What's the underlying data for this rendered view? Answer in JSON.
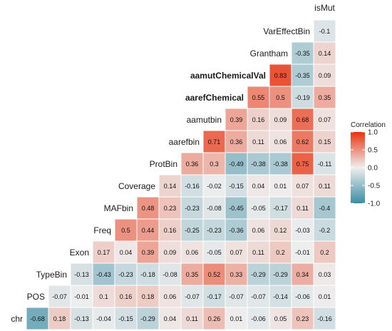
{
  "chart_data": {
    "type": "heatmap",
    "variables": [
      "chr",
      "POS",
      "TypeBin",
      "Exon",
      "Freq",
      "MAFbin",
      "Coverage",
      "ProtBin",
      "aarefbin",
      "aamutbin",
      "aarefChemical",
      "aamutChemicalVal",
      "Grantham",
      "VarEffectBin",
      "isMut"
    ],
    "row_labels": [
      "VarEffectBin",
      "Grantham",
      "aamutChemicalVal",
      "aarefChemical",
      "aamutbin",
      "aarefbin",
      "ProtBin",
      "Coverage",
      "MAFbin",
      "Freq",
      "Exon",
      "TypeBin",
      "POS",
      "chr"
    ],
    "column_labels": [
      "isMut"
    ],
    "rows": [
      [
        -0.1
      ],
      [
        -0.35,
        0.14
      ],
      [
        0.83,
        -0.35,
        0.09
      ],
      [
        0.55,
        0.5,
        -0.19,
        0.35
      ],
      [
        0.39,
        0.16,
        0.09,
        0.68,
        0.07
      ],
      [
        0.71,
        0.36,
        0.11,
        0.06,
        0.62,
        0.15
      ],
      [
        0.36,
        0.3,
        -0.49,
        -0.38,
        -0.38,
        0.75,
        -0.11
      ],
      [
        0.14,
        -0.16,
        -0.02,
        -0.15,
        0.04,
        0.01,
        0.07,
        0.11
      ],
      [
        0.48,
        0.23,
        -0.23,
        -0.08,
        -0.45,
        -0.05,
        -0.17,
        0.11,
        -0.4
      ],
      [
        0.5,
        0.44,
        0.16,
        -0.25,
        -0.23,
        -0.36,
        0.06,
        0.12,
        -0.03,
        -0.2
      ],
      [
        0.17,
        0.04,
        0.39,
        0.09,
        0.06,
        -0.05,
        0.07,
        0.11,
        0.2,
        -0.01,
        0.2
      ],
      [
        -0.13,
        -0.43,
        -0.23,
        -0.18,
        -0.08,
        0.35,
        0.52,
        0.33,
        -0.29,
        -0.29,
        0.34,
        0.03
      ],
      [
        -0.07,
        -0.01,
        0.1,
        0.16,
        0.18,
        0.06,
        -0.07,
        -0.17,
        -0.07,
        -0.07,
        -0.14,
        -0.06,
        0.01
      ],
      [
        -0.68,
        0.18,
        -0.13,
        -0.04,
        -0.15,
        -0.29,
        0.04,
        0.11,
        0.26,
        0.01,
        -0.06,
        0.05,
        0.23,
        -0.16
      ]
    ],
    "legend": {
      "title": "Correlation",
      "ticks": [
        "1.0",
        "0.5",
        "0.0",
        "-0.5",
        "-1.0"
      ],
      "tick_values": [
        1.0,
        0.5,
        0.0,
        -0.5,
        -1.0
      ],
      "placement": "right"
    },
    "colors": {
      "high": "#E9330F",
      "mid": "#EEEEEE",
      "low": "#3B8DA3"
    }
  }
}
